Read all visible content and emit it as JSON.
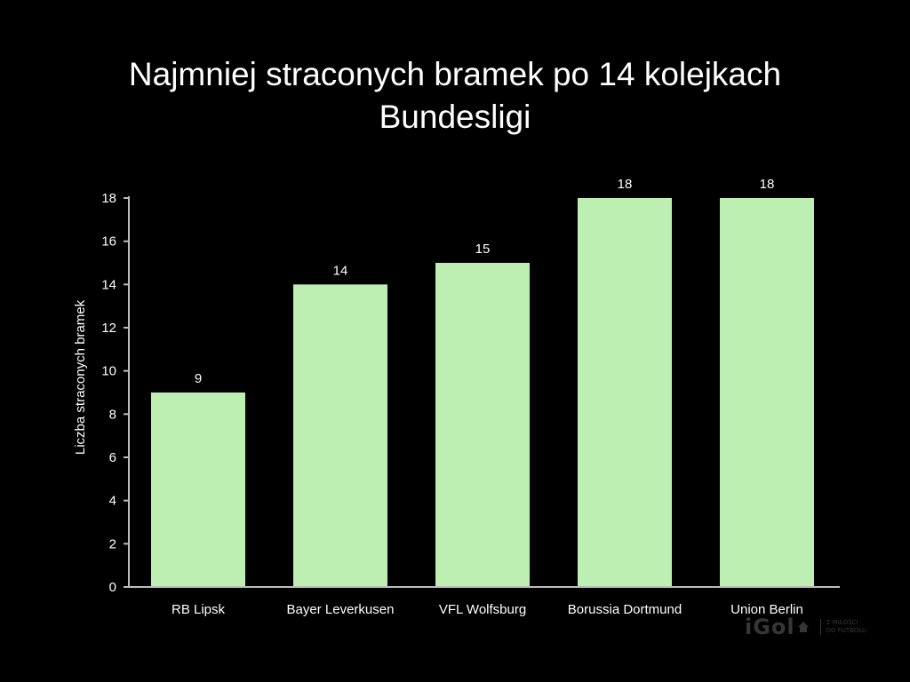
{
  "chart_data": {
    "type": "bar",
    "title": [
      "Najmniej straconych bramek po 14 kolejkach",
      "Bundesligi"
    ],
    "xlabel": "",
    "ylabel": "Liczba straconych bramek",
    "categories": [
      "RB Lipsk",
      "Bayer Leverkusen",
      "VFL Wolfsburg",
      "Borussia Dortmund",
      "Union Berlin"
    ],
    "values": [
      9,
      14,
      15,
      18,
      18
    ],
    "data_labels": [
      "9",
      "14",
      "15",
      "18",
      "18"
    ],
    "ylim": [
      0,
      18
    ],
    "yticks": [
      "0",
      "2",
      "4",
      "6",
      "8",
      "10",
      "12",
      "14",
      "16",
      "18"
    ],
    "grid": false,
    "bar_color": "#bdeeb2"
  },
  "watermark": {
    "logo": "iGol",
    "icon": "house-icon",
    "tagline": [
      "Z MIŁOŚCI",
      "DO FUTBOLU"
    ]
  },
  "colors": {
    "background": "#000000",
    "text": "#ffffff",
    "axis": "#bdbdbd"
  }
}
